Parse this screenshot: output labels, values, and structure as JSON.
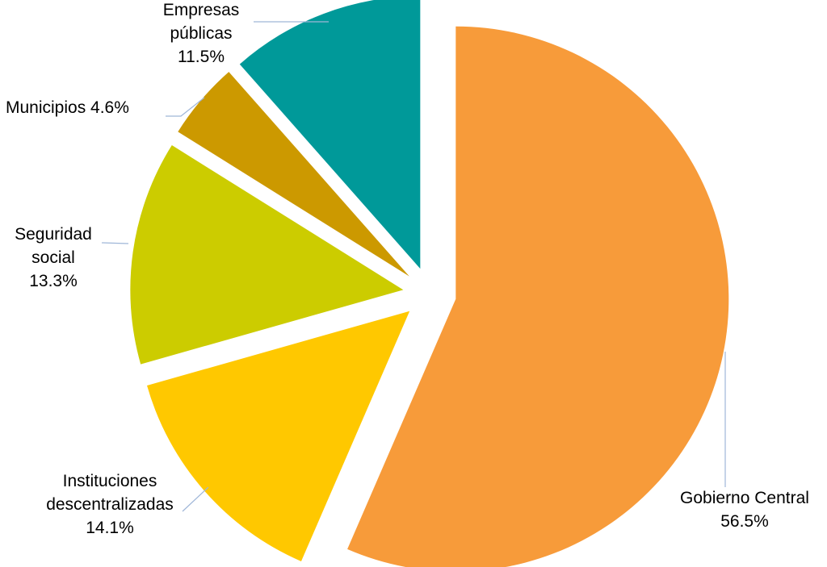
{
  "chart_data": {
    "type": "pie",
    "title": "",
    "slices": [
      {
        "lines": [
          "Gobierno Central",
          "56.5%"
        ],
        "value": 56.5,
        "color": "#F79B3A"
      },
      {
        "lines": [
          "Instituciones",
          "descentralizadas",
          "14.1%"
        ],
        "value": 14.1,
        "color": "#FFC800"
      },
      {
        "lines": [
          "Seguridad",
          "social",
          "13.3%"
        ],
        "value": 13.3,
        "color": "#CCCC00"
      },
      {
        "lines": [
          "Municipios 4.6%"
        ],
        "value": 4.6,
        "color": "#CC9900"
      },
      {
        "lines": [
          "Empresas",
          "públicas",
          "11.5%"
        ],
        "value": 11.5,
        "color": "#009999"
      }
    ],
    "start_angle_deg": 0,
    "direction": "clockwise",
    "exploded": true,
    "legend": "none"
  }
}
